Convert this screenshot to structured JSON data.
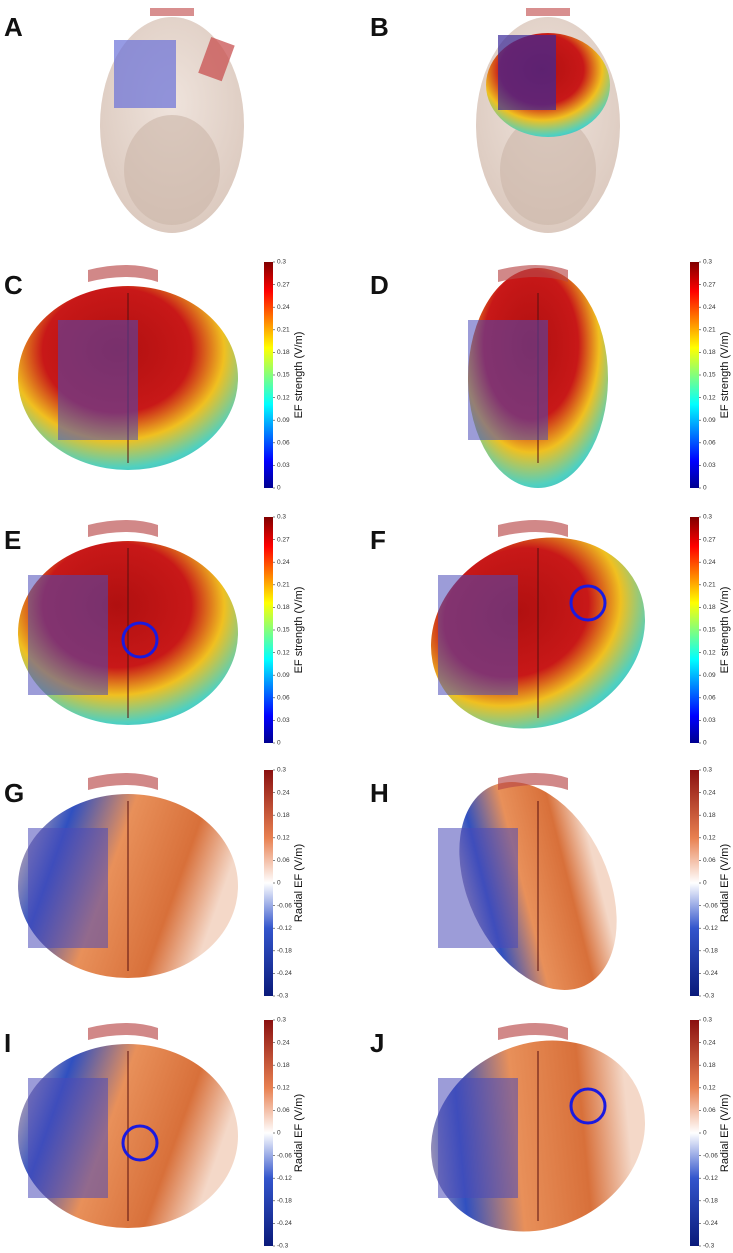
{
  "panels": [
    {
      "label": "A"
    },
    {
      "label": "B"
    },
    {
      "label": "C",
      "colorbar": {
        "title": "EF strength (V/m)",
        "lim": [
          0,
          0.3
        ],
        "ticks": [
          0,
          0.03,
          0.06,
          0.09,
          0.12,
          0.15,
          0.18,
          0.21,
          0.24,
          0.27,
          0.3
        ]
      }
    },
    {
      "label": "D",
      "colorbar": {
        "title": "EF strength (V/m)",
        "lim": [
          0,
          0.3
        ],
        "ticks": [
          0,
          0.03,
          0.06,
          0.09,
          0.12,
          0.15,
          0.18,
          0.21,
          0.24,
          0.27,
          0.3
        ]
      }
    },
    {
      "label": "E",
      "colorbar": {
        "title": "EF strength (V/m)",
        "lim": [
          0,
          0.3
        ],
        "ticks": [
          0,
          0.03,
          0.06,
          0.09,
          0.12,
          0.15,
          0.18,
          0.21,
          0.24,
          0.27,
          0.3
        ]
      }
    },
    {
      "label": "F",
      "colorbar": {
        "title": "EF strength (V/m)",
        "lim": [
          0,
          0.3
        ],
        "ticks": [
          0,
          0.03,
          0.06,
          0.09,
          0.12,
          0.15,
          0.18,
          0.21,
          0.24,
          0.27,
          0.3
        ]
      }
    },
    {
      "label": "G",
      "colorbar": {
        "title": "Radial EF (V/m)",
        "lim": [
          -0.3,
          0.3
        ],
        "ticks": [
          -0.3,
          -0.24,
          -0.18,
          -0.12,
          -0.06,
          0,
          0.06,
          0.12,
          0.18,
          0.24,
          0.3
        ]
      }
    },
    {
      "label": "H",
      "colorbar": {
        "title": "Radial EF (V/m)",
        "lim": [
          -0.3,
          0.3
        ],
        "ticks": [
          -0.3,
          -0.24,
          -0.18,
          -0.12,
          -0.06,
          0,
          0.06,
          0.12,
          0.18,
          0.24,
          0.3
        ]
      }
    },
    {
      "label": "I",
      "colorbar": {
        "title": "Radial EF (V/m)",
        "lim": [
          -0.3,
          0.3
        ],
        "ticks": [
          -0.3,
          -0.24,
          -0.18,
          -0.12,
          -0.06,
          0,
          0.06,
          0.12,
          0.18,
          0.24,
          0.3
        ]
      }
    },
    {
      "label": "J",
      "colorbar": {
        "title": "Radial EF (V/m)",
        "lim": [
          -0.3,
          0.3
        ],
        "ticks": [
          -0.3,
          -0.24,
          -0.18,
          -0.12,
          -0.06,
          0,
          0.06,
          0.12,
          0.18,
          0.24,
          0.3
        ]
      }
    }
  ]
}
